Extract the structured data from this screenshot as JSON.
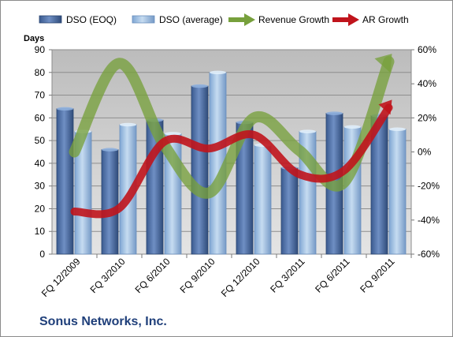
{
  "chart_data": {
    "type": "bar",
    "categories": [
      "FQ 12/2009",
      "FQ 3/2010",
      "FQ 6/2010",
      "FQ 9/2010",
      "FQ 12/2010",
      "FQ 3/2011",
      "FQ 6/2011",
      "FQ 9/2011"
    ],
    "series": [
      {
        "name": "DSO (EOQ)",
        "kind": "bar",
        "axis": "left",
        "color": "#4f6fa6",
        "values": [
          64,
          46,
          59,
          74,
          58,
          38,
          62,
          61
        ]
      },
      {
        "name": "DSO (average)",
        "kind": "bar",
        "axis": "left",
        "color": "#9dc3e6",
        "values": [
          54,
          57,
          53,
          80,
          48,
          54,
          56,
          55
        ]
      },
      {
        "name": "Revenue Growth",
        "kind": "arrow-line",
        "axis": "right",
        "color": "#77a03c",
        "values": [
          0,
          52,
          4,
          -24,
          20,
          1,
          -18,
          53
        ]
      },
      {
        "name": "AR Growth",
        "kind": "arrow-line",
        "axis": "right",
        "color": "#c0141c",
        "values": [
          -35,
          -33,
          6,
          2,
          10,
          -13,
          -11,
          26
        ]
      }
    ],
    "ylabel": "Days",
    "ylim": [
      0,
      90
    ],
    "yticks": [
      "0",
      "10",
      "20",
      "30",
      "40",
      "50",
      "60",
      "70",
      "80",
      "90"
    ],
    "y2lim": [
      -60,
      60
    ],
    "y2ticks": [
      "-60%",
      "-40%",
      "-20%",
      "0%",
      "20%",
      "40%",
      "60%"
    ],
    "legend_position": "top",
    "grid": true,
    "title": "Sonus Networks, Inc."
  }
}
